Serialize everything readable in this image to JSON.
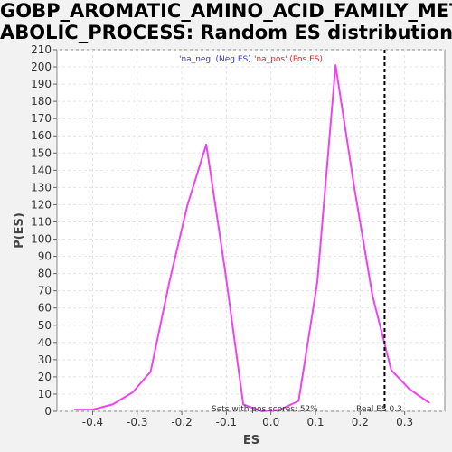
{
  "title_line1": "GOBP_AROMATIC_AMINO_ACID_FAMILY_MET",
  "title_line2": "ABOLIC_PROCESS: Random ES distribution",
  "chart_data": {
    "type": "line",
    "xlabel": "ES",
    "ylabel": "P(ES)",
    "xlim": [
      -0.48,
      0.39
    ],
    "ylim": [
      0,
      210
    ],
    "x_ticks": [
      -0.4,
      -0.3,
      -0.2,
      -0.1,
      0.0,
      0.1,
      0.2,
      0.3
    ],
    "x_tick_labels": [
      "-0.4",
      "-0.3",
      "-0.2",
      "-0.1",
      "0.0",
      "0.1",
      "0.2",
      "0.3"
    ],
    "y_ticks": [
      0,
      10,
      20,
      30,
      40,
      50,
      60,
      70,
      80,
      90,
      100,
      110,
      120,
      130,
      140,
      150,
      160,
      170,
      180,
      190,
      200,
      210
    ],
    "grid": true,
    "series": [
      {
        "name": "'na_neg' (Neg ES)",
        "color": "#3333cc",
        "x": [],
        "y": []
      },
      {
        "name": "'na_pos' (Pos ES)",
        "color": "#e02020",
        "x": [],
        "y": []
      },
      {
        "name": "",
        "color": "#ee44ee",
        "x": [
          -0.44,
          -0.4,
          -0.355,
          -0.31,
          -0.27,
          -0.228,
          -0.187,
          -0.145,
          -0.103,
          -0.062,
          -0.02,
          0.02,
          0.062,
          0.104,
          0.145,
          0.187,
          0.228,
          0.27,
          0.31,
          0.355
        ],
        "y": [
          1,
          1,
          4,
          11,
          23,
          75,
          120,
          155,
          82,
          4,
          0,
          1,
          6,
          75,
          201,
          130,
          67,
          24,
          13,
          5
        ]
      }
    ],
    "real_es": 0.255,
    "real_es_label": "Real ES 0.3",
    "pos_scores_label": "Sets with pos scores: 52%",
    "legend_position": "top-center"
  }
}
